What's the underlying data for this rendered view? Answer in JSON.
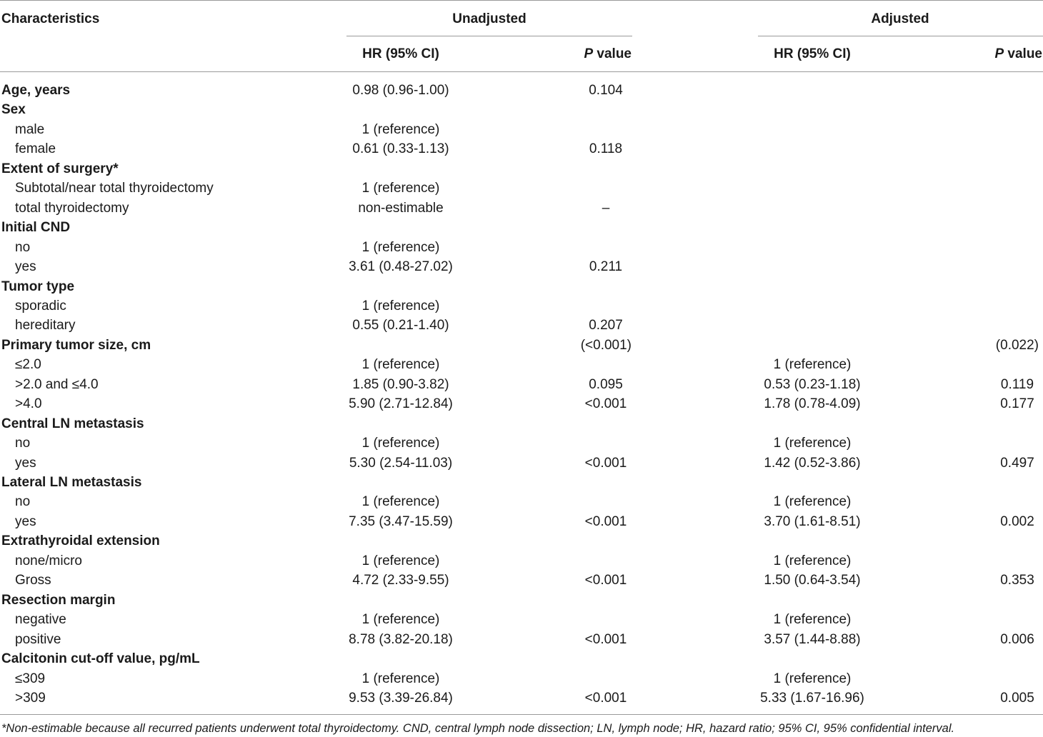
{
  "header": {
    "characteristics": "Characteristics",
    "unadjusted": "Unadjusted",
    "adjusted": "Adjusted",
    "hr_ci": "HR (95% CI)",
    "p_italic": "P",
    "p_rest": " value"
  },
  "rows": [
    {
      "label": "Age, years",
      "bold": true,
      "u_hr": "0.98 (0.96-1.00)",
      "u_p": "0.104",
      "a_hr": "",
      "a_p": ""
    },
    {
      "label": "Sex",
      "bold": true,
      "u_hr": "",
      "u_p": "",
      "a_hr": "",
      "a_p": ""
    },
    {
      "label": "male",
      "bold": false,
      "u_hr": "1 (reference)",
      "u_p": "",
      "a_hr": "",
      "a_p": ""
    },
    {
      "label": "female",
      "bold": false,
      "u_hr": "0.61 (0.33-1.13)",
      "u_p": "0.118",
      "a_hr": "",
      "a_p": ""
    },
    {
      "label": "Extent of surgery*",
      "bold": true,
      "u_hr": "",
      "u_p": "",
      "a_hr": "",
      "a_p": ""
    },
    {
      "label": "Subtotal/near total thyroidectomy",
      "bold": false,
      "u_hr": "1 (reference)",
      "u_p": "",
      "a_hr": "",
      "a_p": ""
    },
    {
      "label": "total thyroidectomy",
      "bold": false,
      "u_hr": "non-estimable",
      "u_p": "–",
      "a_hr": "",
      "a_p": ""
    },
    {
      "label": "Initial CND",
      "bold": true,
      "u_hr": "",
      "u_p": "",
      "a_hr": "",
      "a_p": ""
    },
    {
      "label": "no",
      "bold": false,
      "u_hr": "1 (reference)",
      "u_p": "",
      "a_hr": "",
      "a_p": ""
    },
    {
      "label": "yes",
      "bold": false,
      "u_hr": "3.61 (0.48-27.02)",
      "u_p": "0.211",
      "a_hr": "",
      "a_p": ""
    },
    {
      "label": "Tumor type",
      "bold": true,
      "u_hr": "",
      "u_p": "",
      "a_hr": "",
      "a_p": ""
    },
    {
      "label": "sporadic",
      "bold": false,
      "u_hr": "1 (reference)",
      "u_p": "",
      "a_hr": "",
      "a_p": ""
    },
    {
      "label": "hereditary",
      "bold": false,
      "u_hr": "0.55 (0.21-1.40)",
      "u_p": "0.207",
      "a_hr": "",
      "a_p": ""
    },
    {
      "label": "Primary tumor size, cm",
      "bold": true,
      "u_hr": "",
      "u_p": "(<0.001)",
      "a_hr": "",
      "a_p": "(0.022)"
    },
    {
      "label": "≤2.0",
      "bold": false,
      "u_hr": "1 (reference)",
      "u_p": "",
      "a_hr": "1 (reference)",
      "a_p": ""
    },
    {
      "label": ">2.0 and ≤4.0",
      "bold": false,
      "u_hr": "1.85 (0.90-3.82)",
      "u_p": "0.095",
      "a_hr": "0.53 (0.23-1.18)",
      "a_p": "0.119"
    },
    {
      "label": ">4.0",
      "bold": false,
      "u_hr": "5.90 (2.71-12.84)",
      "u_p": "<0.001",
      "a_hr": "1.78 (0.78-4.09)",
      "a_p": "0.177"
    },
    {
      "label": "Central LN metastasis",
      "bold": true,
      "u_hr": "",
      "u_p": "",
      "a_hr": "",
      "a_p": ""
    },
    {
      "label": "no",
      "bold": false,
      "u_hr": "1 (reference)",
      "u_p": "",
      "a_hr": "1 (reference)",
      "a_p": ""
    },
    {
      "label": "yes",
      "bold": false,
      "u_hr": "5.30 (2.54-11.03)",
      "u_p": "<0.001",
      "a_hr": "1.42 (0.52-3.86)",
      "a_p": "0.497"
    },
    {
      "label": "Lateral LN metastasis",
      "bold": true,
      "u_hr": "",
      "u_p": "",
      "a_hr": "",
      "a_p": ""
    },
    {
      "label": "no",
      "bold": false,
      "u_hr": "1 (reference)",
      "u_p": "",
      "a_hr": "1 (reference)",
      "a_p": ""
    },
    {
      "label": "yes",
      "bold": false,
      "u_hr": "7.35 (3.47-15.59)",
      "u_p": "<0.001",
      "a_hr": "3.70 (1.61-8.51)",
      "a_p": "0.002"
    },
    {
      "label": "Extrathyroidal extension",
      "bold": true,
      "u_hr": "",
      "u_p": "",
      "a_hr": "",
      "a_p": ""
    },
    {
      "label": "none/micro",
      "bold": false,
      "u_hr": "1 (reference)",
      "u_p": "",
      "a_hr": "1 (reference)",
      "a_p": ""
    },
    {
      "label": "Gross",
      "bold": false,
      "u_hr": "4.72 (2.33-9.55)",
      "u_p": "<0.001",
      "a_hr": "1.50 (0.64-3.54)",
      "a_p": "0.353"
    },
    {
      "label": "Resection margin",
      "bold": true,
      "u_hr": "",
      "u_p": "",
      "a_hr": "",
      "a_p": ""
    },
    {
      "label": "negative",
      "bold": false,
      "u_hr": "1 (reference)",
      "u_p": "",
      "a_hr": "1 (reference)",
      "a_p": ""
    },
    {
      "label": "positive",
      "bold": false,
      "u_hr": "8.78 (3.82-20.18)",
      "u_p": "<0.001",
      "a_hr": "3.57 (1.44-8.88)",
      "a_p": "0.006"
    },
    {
      "label": "Calcitonin cut-off value, pg/mL",
      "bold": true,
      "u_hr": "",
      "u_p": "",
      "a_hr": "",
      "a_p": ""
    },
    {
      "label": "≤309",
      "bold": false,
      "u_hr": "1 (reference)",
      "u_p": "",
      "a_hr": "1 (reference)",
      "a_p": ""
    },
    {
      "label": ">309",
      "bold": false,
      "u_hr": "9.53 (3.39-26.84)",
      "u_p": "<0.001",
      "a_hr": "5.33 (1.67-16.96)",
      "a_p": "0.005"
    }
  ],
  "footnote": "*Non-estimable because all recurred patients underwent total thyroidectomy. CND, central lymph node dissection; LN, lymph node; HR, hazard ratio; 95% CI, 95% confidential interval."
}
